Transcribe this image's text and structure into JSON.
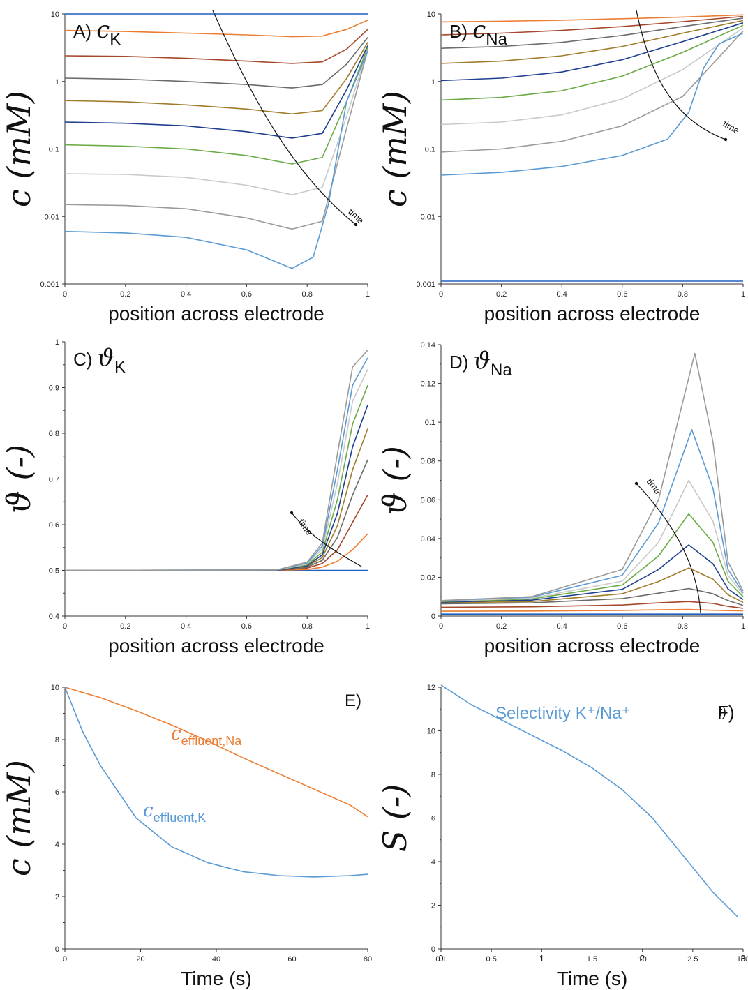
{
  "chart_data": [
    {
      "panel": "A)",
      "symbol": "c",
      "subscript": "K",
      "type": "line",
      "xlabel": "position across electrode",
      "ylabel": "c (mM)",
      "yscale": "log",
      "xlim": [
        0,
        1
      ],
      "ylim": [
        0.001,
        10
      ],
      "xticks": [
        "0",
        "0.2",
        "0.4",
        "0.6",
        "0.8",
        "1"
      ],
      "yticks": [
        "0.001",
        "0.01",
        "0.1",
        "1",
        "10"
      ],
      "annotation": "time",
      "series": [
        {
          "color": "#1f5fbf",
          "x": [
            0,
            0.5,
            1
          ],
          "y": [
            10,
            10,
            10
          ]
        },
        {
          "color": "#ed7d31",
          "x": [
            0,
            0.2,
            0.4,
            0.6,
            0.75,
            0.85,
            0.93,
            1
          ],
          "y": [
            5.7,
            5.5,
            5.2,
            4.9,
            4.6,
            4.7,
            5.9,
            8.1
          ]
        },
        {
          "color": "#a5472b",
          "x": [
            0,
            0.2,
            0.4,
            0.6,
            0.75,
            0.85,
            0.93,
            1
          ],
          "y": [
            2.4,
            2.35,
            2.2,
            2.0,
            1.85,
            1.95,
            3.0,
            5.9
          ]
        },
        {
          "color": "#6b6b6b",
          "x": [
            0,
            0.2,
            0.4,
            0.6,
            0.75,
            0.85,
            0.93,
            1
          ],
          "y": [
            1.12,
            1.08,
            1.0,
            0.9,
            0.8,
            0.9,
            1.8,
            4.5
          ]
        },
        {
          "color": "#a07c2a",
          "x": [
            0,
            0.2,
            0.4,
            0.6,
            0.75,
            0.85,
            0.93,
            1
          ],
          "y": [
            0.52,
            0.5,
            0.45,
            0.39,
            0.33,
            0.37,
            1.1,
            3.8
          ]
        },
        {
          "color": "#1f3f8f",
          "x": [
            0,
            0.2,
            0.4,
            0.6,
            0.75,
            0.85,
            0.93,
            1
          ],
          "y": [
            0.25,
            0.24,
            0.22,
            0.18,
            0.145,
            0.17,
            0.75,
            3.4
          ]
        },
        {
          "color": "#6aab46",
          "x": [
            0,
            0.2,
            0.4,
            0.6,
            0.75,
            0.85,
            0.93,
            1
          ],
          "y": [
            0.115,
            0.11,
            0.1,
            0.08,
            0.06,
            0.075,
            0.5,
            3.2
          ]
        },
        {
          "color": "#c9c9c9",
          "x": [
            0,
            0.2,
            0.4,
            0.6,
            0.75,
            0.85,
            0.93,
            1
          ],
          "y": [
            0.043,
            0.042,
            0.038,
            0.029,
            0.021,
            0.027,
            0.3,
            3.0
          ]
        },
        {
          "color": "#9a9a9a",
          "x": [
            0,
            0.2,
            0.4,
            0.6,
            0.75,
            0.85,
            0.93,
            1
          ],
          "y": [
            0.015,
            0.0145,
            0.013,
            0.0095,
            0.0065,
            0.0085,
            0.2,
            2.9
          ]
        },
        {
          "color": "#5b9bd5",
          "x": [
            0,
            0.2,
            0.4,
            0.6,
            0.75,
            0.82,
            0.87,
            0.93,
            1
          ],
          "y": [
            0.006,
            0.0057,
            0.0049,
            0.0032,
            0.0017,
            0.0025,
            0.015,
            0.5,
            2.8
          ]
        }
      ]
    },
    {
      "panel": "B)",
      "symbol": "c",
      "subscript": "Na",
      "type": "line",
      "xlabel": "position across electrode",
      "ylabel": "c (mM)",
      "yscale": "log",
      "xlim": [
        0,
        1
      ],
      "ylim": [
        0.001,
        10
      ],
      "xticks": [
        "0",
        "0.2",
        "0.4",
        "0.6",
        "0.8",
        "1"
      ],
      "yticks": [
        "0.001",
        "0.01",
        "0.1",
        "1",
        "10"
      ],
      "annotation": "time",
      "series": [
        {
          "color": "#1f5fbf",
          "x": [
            0,
            0.5,
            1
          ],
          "y": [
            0.0011,
            0.0011,
            0.0011
          ]
        },
        {
          "color": "#ed7d31",
          "x": [
            0,
            0.2,
            0.4,
            0.6,
            0.8,
            1
          ],
          "y": [
            7.6,
            7.8,
            8.1,
            8.5,
            9.0,
            9.7
          ]
        },
        {
          "color": "#a5472b",
          "x": [
            0,
            0.2,
            0.4,
            0.6,
            0.8,
            1
          ],
          "y": [
            4.9,
            5.2,
            5.7,
            6.5,
            7.7,
            9.2
          ]
        },
        {
          "color": "#6b6b6b",
          "x": [
            0,
            0.2,
            0.4,
            0.6,
            0.8,
            1
          ],
          "y": [
            3.1,
            3.3,
            3.8,
            4.8,
            6.5,
            8.7
          ]
        },
        {
          "color": "#a07c2a",
          "x": [
            0,
            0.2,
            0.4,
            0.6,
            0.8,
            1
          ],
          "y": [
            1.85,
            2.0,
            2.4,
            3.3,
            5.2,
            8.0
          ]
        },
        {
          "color": "#1f3f8f",
          "x": [
            0,
            0.2,
            0.4,
            0.6,
            0.8,
            1
          ],
          "y": [
            1.03,
            1.12,
            1.38,
            2.1,
            3.9,
            7.4
          ]
        },
        {
          "color": "#6aab46",
          "x": [
            0,
            0.2,
            0.4,
            0.6,
            0.8,
            1
          ],
          "y": [
            0.53,
            0.58,
            0.73,
            1.2,
            2.7,
            6.8
          ]
        },
        {
          "color": "#c9c9c9",
          "x": [
            0,
            0.2,
            0.4,
            0.6,
            0.8,
            1
          ],
          "y": [
            0.23,
            0.25,
            0.32,
            0.55,
            1.5,
            6.2
          ]
        },
        {
          "color": "#9a9a9a",
          "x": [
            0,
            0.2,
            0.4,
            0.6,
            0.8,
            1
          ],
          "y": [
            0.09,
            0.1,
            0.13,
            0.22,
            0.6,
            5.6
          ]
        },
        {
          "color": "#5b9bd5",
          "x": [
            0,
            0.2,
            0.4,
            0.6,
            0.75,
            0.82,
            0.87,
            0.92,
            1
          ],
          "y": [
            0.041,
            0.045,
            0.055,
            0.08,
            0.14,
            0.35,
            1.6,
            3.6,
            5.2
          ]
        }
      ]
    },
    {
      "panel": "C)",
      "symbol": "ϑ",
      "subscript": "K",
      "type": "line",
      "xlabel": "position across electrode",
      "ylabel": "ϑ (-)",
      "xlim": [
        0,
        1
      ],
      "ylim": [
        0.4,
        1
      ],
      "xticks": [
        "0",
        "0.2",
        "0.4",
        "0.6",
        "0.8",
        "1"
      ],
      "yticks": [
        "0.4",
        "0.5",
        "0.6",
        "0.7",
        "0.8",
        "0.9",
        "1"
      ],
      "annotation": "time",
      "series": [
        {
          "color": "#1f5fbf",
          "x": [
            0,
            0.5,
            1
          ],
          "y": [
            0.5,
            0.5,
            0.5
          ]
        },
        {
          "color": "#ed7d31",
          "x": [
            0,
            0.7,
            0.8,
            0.85,
            0.9,
            0.95,
            1
          ],
          "y": [
            0.5,
            0.5,
            0.502,
            0.507,
            0.52,
            0.545,
            0.58
          ]
        },
        {
          "color": "#a5472b",
          "x": [
            0,
            0.7,
            0.8,
            0.85,
            0.9,
            0.95,
            1
          ],
          "y": [
            0.5,
            0.5,
            0.505,
            0.515,
            0.545,
            0.605,
            0.665
          ]
        },
        {
          "color": "#6b6b6b",
          "x": [
            0,
            0.7,
            0.8,
            0.85,
            0.9,
            0.95,
            1
          ],
          "y": [
            0.5,
            0.5,
            0.507,
            0.522,
            0.572,
            0.665,
            0.742
          ]
        },
        {
          "color": "#a07c2a",
          "x": [
            0,
            0.7,
            0.8,
            0.85,
            0.9,
            0.95,
            1
          ],
          "y": [
            0.5,
            0.5,
            0.509,
            0.528,
            0.598,
            0.72,
            0.81
          ]
        },
        {
          "color": "#1f3f8f",
          "x": [
            0,
            0.7,
            0.8,
            0.85,
            0.9,
            0.95,
            1
          ],
          "y": [
            0.5,
            0.5,
            0.51,
            0.534,
            0.625,
            0.77,
            0.862
          ]
        },
        {
          "color": "#6aab46",
          "x": [
            0,
            0.7,
            0.8,
            0.85,
            0.9,
            0.95,
            1
          ],
          "y": [
            0.5,
            0.501,
            0.512,
            0.54,
            0.655,
            0.82,
            0.905
          ]
        },
        {
          "color": "#c9c9c9",
          "x": [
            0,
            0.7,
            0.8,
            0.85,
            0.9,
            0.95,
            1
          ],
          "y": [
            0.5,
            0.501,
            0.514,
            0.547,
            0.69,
            0.87,
            0.94
          ]
        },
        {
          "color": "#5b9bd5",
          "x": [
            0,
            0.7,
            0.8,
            0.85,
            0.9,
            0.95,
            1
          ],
          "y": [
            0.5,
            0.501,
            0.516,
            0.553,
            0.72,
            0.905,
            0.965
          ]
        },
        {
          "color": "#9a9a9a",
          "x": [
            0,
            0.7,
            0.8,
            0.85,
            0.9,
            0.95,
            1
          ],
          "y": [
            0.5,
            0.501,
            0.518,
            0.56,
            0.755,
            0.945,
            0.982
          ]
        }
      ]
    },
    {
      "panel": "D)",
      "symbol": "ϑ",
      "subscript": "Na",
      "type": "line",
      "xlabel": "position across electrode",
      "ylabel": "ϑ (-)",
      "xlim": [
        0,
        1
      ],
      "ylim": [
        0,
        0.14
      ],
      "xticks": [
        "0",
        "0.2",
        "0.4",
        "0.6",
        "0.8",
        "1"
      ],
      "yticks": [
        "0",
        "0.02",
        "0.04",
        "0.06",
        "0.08",
        "0.1",
        "0.12",
        "0.14"
      ],
      "annotation": "time",
      "series": [
        {
          "color": "#1f5fbf",
          "x": [
            0,
            0.5,
            1
          ],
          "y": [
            0.001,
            0.001,
            0.001
          ]
        },
        {
          "color": "#ed7d31",
          "x": [
            0,
            0.3,
            0.6,
            0.72,
            0.82,
            0.9,
            0.95,
            1
          ],
          "y": [
            0.0025,
            0.0026,
            0.0029,
            0.0032,
            0.0034,
            0.003,
            0.0028,
            0.0027
          ]
        },
        {
          "color": "#a5472b",
          "x": [
            0,
            0.3,
            0.6,
            0.72,
            0.82,
            0.9,
            0.95,
            1
          ],
          "y": [
            0.0045,
            0.0048,
            0.0057,
            0.0068,
            0.0075,
            0.0065,
            0.005,
            0.004
          ]
        },
        {
          "color": "#6b6b6b",
          "x": [
            0,
            0.3,
            0.6,
            0.72,
            0.82,
            0.9,
            0.95,
            1
          ],
          "y": [
            0.0063,
            0.0068,
            0.009,
            0.0118,
            0.0142,
            0.0115,
            0.008,
            0.0055
          ]
        },
        {
          "color": "#a07c2a",
          "x": [
            0,
            0.3,
            0.6,
            0.72,
            0.82,
            0.9,
            0.95,
            1
          ],
          "y": [
            0.0068,
            0.0075,
            0.0115,
            0.0178,
            0.0248,
            0.019,
            0.011,
            0.007
          ]
        },
        {
          "color": "#1f3f8f",
          "x": [
            0,
            0.3,
            0.6,
            0.72,
            0.82,
            0.9,
            0.95,
            1
          ],
          "y": [
            0.0072,
            0.0082,
            0.0138,
            0.024,
            0.0367,
            0.027,
            0.014,
            0.0085
          ]
        },
        {
          "color": "#6aab46",
          "x": [
            0,
            0.3,
            0.6,
            0.72,
            0.82,
            0.9,
            0.95,
            1
          ],
          "y": [
            0.0075,
            0.0088,
            0.016,
            0.031,
            0.0527,
            0.038,
            0.018,
            0.01
          ]
        },
        {
          "color": "#c9c9c9",
          "x": [
            0,
            0.3,
            0.6,
            0.72,
            0.82,
            0.9,
            0.95,
            1
          ],
          "y": [
            0.0077,
            0.0092,
            0.018,
            0.038,
            0.07,
            0.049,
            0.021,
            0.011
          ]
        },
        {
          "color": "#5b9bd5",
          "x": [
            0,
            0.3,
            0.6,
            0.72,
            0.83,
            0.9,
            0.95,
            1
          ],
          "y": [
            0.0079,
            0.0097,
            0.021,
            0.048,
            0.0962,
            0.066,
            0.024,
            0.012
          ]
        },
        {
          "color": "#9a9a9a",
          "x": [
            0,
            0.3,
            0.6,
            0.72,
            0.84,
            0.9,
            0.95,
            1
          ],
          "y": [
            0.008,
            0.01,
            0.024,
            0.06,
            0.1355,
            0.09,
            0.028,
            0.013
          ]
        }
      ]
    },
    {
      "panel": "E)",
      "type": "line",
      "xlabel": "Time (s)",
      "ylabel": "c (mM)",
      "xlim": [
        0,
        85
      ],
      "ylim": [
        0,
        10
      ],
      "xticks": [
        "0",
        "20",
        "40",
        "60",
        "80"
      ],
      "yticks": [
        "0",
        "2",
        "4",
        "6",
        "8",
        "10"
      ],
      "series": [
        {
          "name": "c",
          "subscript": "effluent,Na",
          "color": "#ed7d31",
          "x": [
            0,
            10,
            20,
            30,
            40,
            50,
            60,
            70,
            80,
            85
          ],
          "y": [
            10,
            9.6,
            9.1,
            8.55,
            7.95,
            7.3,
            6.7,
            6.1,
            5.5,
            5.05
          ]
        },
        {
          "name": "c",
          "subscript": "effluent,K",
          "color": "#5b9bd5",
          "x": [
            0,
            5,
            10,
            20,
            30,
            40,
            50,
            60,
            70,
            80,
            85
          ],
          "y": [
            10,
            8.3,
            7.0,
            5.0,
            3.9,
            3.3,
            2.95,
            2.8,
            2.75,
            2.8,
            2.85
          ]
        }
      ]
    },
    {
      "panel": "F)",
      "panel_overlay": "f)",
      "type": "line",
      "title": "Selectivity K⁺/Na⁺",
      "xlabel": "Time (s)",
      "ylabel": "S (-)",
      "xlim": [
        0,
        3
      ],
      "ylim": [
        0,
        12
      ],
      "xticks": [
        "0.1",
        "0.5",
        "1",
        "1.5",
        "10",
        "2.5",
        "100"
      ],
      "xticks_overlay": [
        "0",
        "1",
        "2",
        "3"
      ],
      "yticks": [
        "0",
        "2",
        "4",
        "6",
        "8",
        "10",
        "12"
      ],
      "series": [
        {
          "color": "#5b9bd5",
          "x": [
            0,
            0.3,
            0.6,
            0.9,
            1.2,
            1.5,
            1.8,
            2.1,
            2.4,
            2.7,
            2.95
          ],
          "y": [
            12.1,
            11.2,
            10.5,
            9.8,
            9.1,
            8.3,
            7.3,
            6.0,
            4.3,
            2.6,
            1.45
          ]
        }
      ]
    }
  ]
}
